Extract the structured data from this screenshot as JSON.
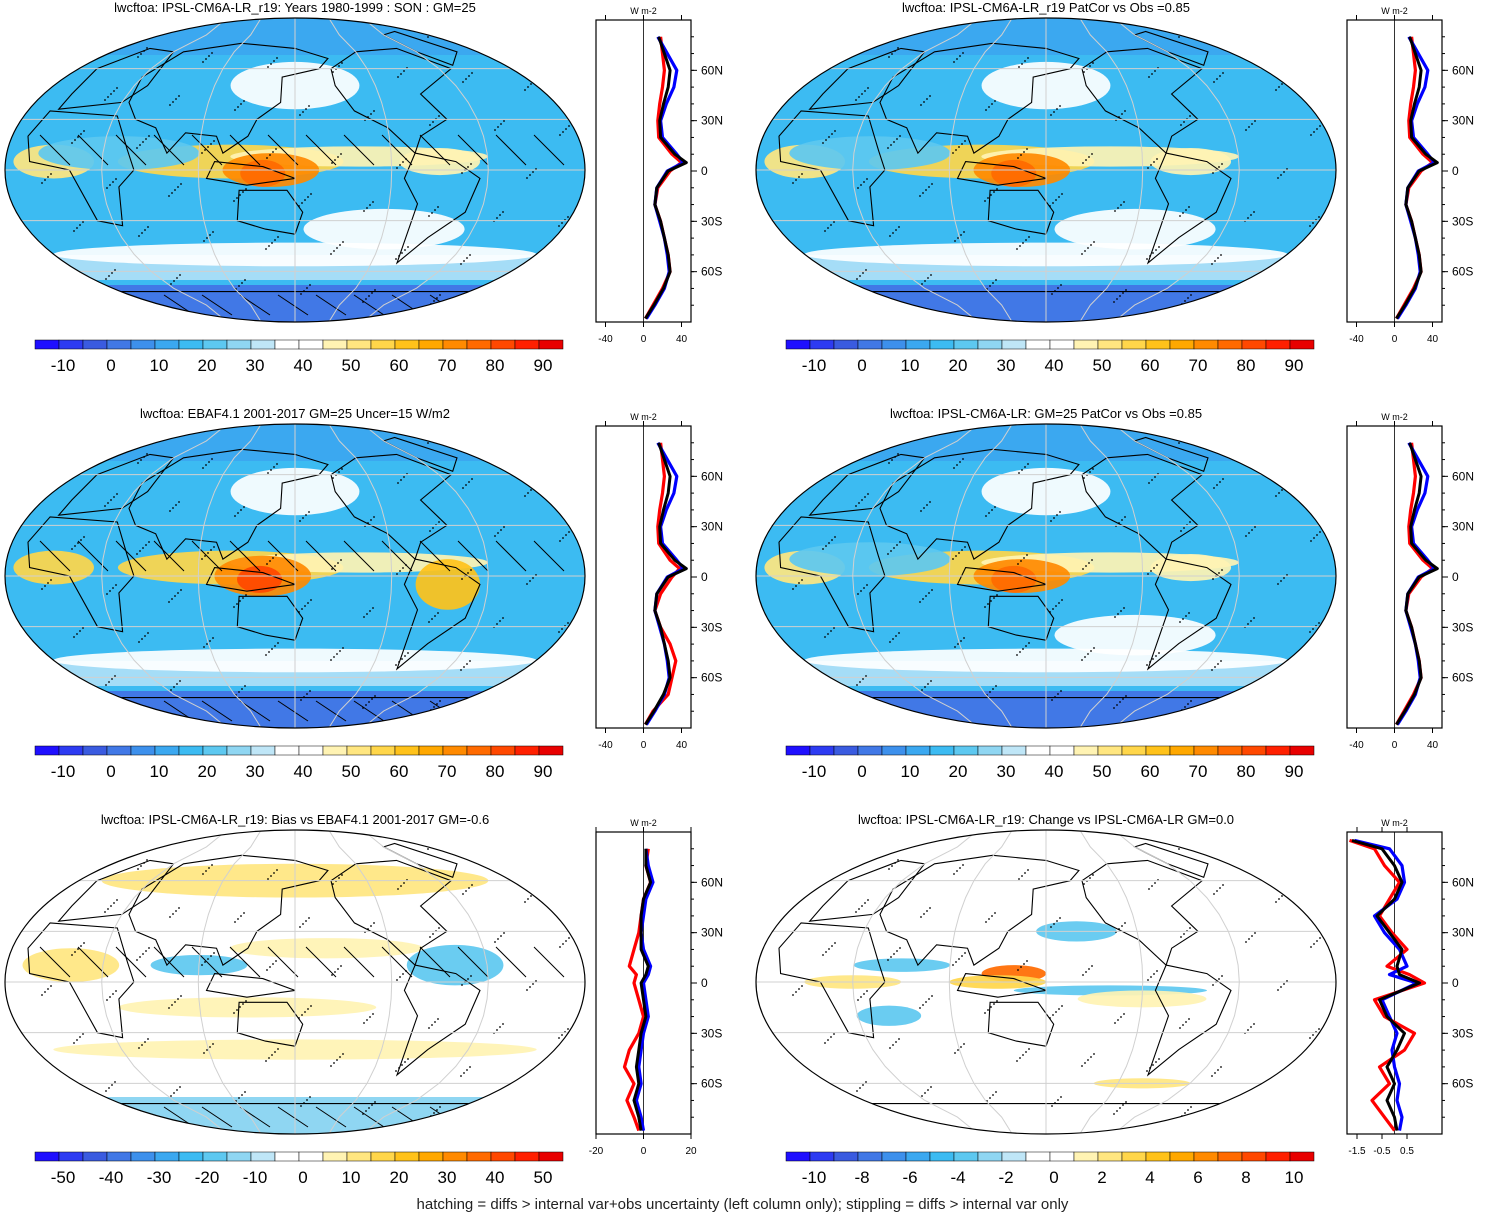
{
  "footer": "hatching = diffs > internal var+obs uncertainty (left column only); stippling = diffs > internal var only",
  "units_label": "W m-2",
  "lat_ticks": [
    "60N",
    "30N",
    "0",
    "30S",
    "60S"
  ],
  "colors": {
    "model": "#ff0000",
    "obs": "#0000ff",
    "mean": "#000000",
    "palette": [
      "#1f0fff",
      "#2d3bf2",
      "#3a5be0",
      "#4178e6",
      "#3d90ec",
      "#3ba8f0",
      "#3cbbf2",
      "#5dc8f0",
      "#8fd6f2",
      "#bfe6f7",
      "#ffffff",
      "#ffffff",
      "#fff3b3",
      "#ffe680",
      "#ffd64a",
      "#ffc21a",
      "#ffa800",
      "#ff8a00",
      "#ff6a00",
      "#ff4800",
      "#ff2000",
      "#e80000",
      "#b00000"
    ]
  },
  "panels": [
    {
      "id": "top-left",
      "title": "lwcftoa: IPSL-CM6A-LR_r19: Years 1980-1999 : SON : GM=25",
      "cbar_labels": [
        "-10",
        "0",
        "10",
        "20",
        "30",
        "40",
        "50",
        "60",
        "70",
        "80",
        "90"
      ],
      "zm_ticks": [
        "-40",
        "0",
        "40"
      ],
      "chart_data": {
        "type": "line",
        "title": "lwcftoa: IPSL-CM6A-LR_r19: Years 1980-1999 : SON : GM=25",
        "xlabel": "W m-2",
        "ylabel": "",
        "xlim": [
          -50,
          50
        ],
        "ylim": [
          -90,
          90
        ],
        "y": [
          80,
          70,
          60,
          50,
          40,
          30,
          20,
          10,
          5,
          0,
          -10,
          -20,
          -30,
          -40,
          -50,
          -60,
          -70,
          -80,
          -88
        ],
        "series": [
          {
            "values": [
              18,
              20,
              22,
              20,
              17,
              15,
              16,
              30,
              40,
              28,
              15,
              12,
              18,
              22,
              26,
              28,
              20,
              10,
              2
            ]
          },
          {
            "values": [
              15,
              25,
              35,
              32,
              24,
              18,
              20,
              35,
              42,
              25,
              14,
              12,
              17,
              22,
              25,
              27,
              22,
              12,
              3
            ]
          },
          {
            "values": [
              16,
              22,
              28,
              26,
              21,
              17,
              18,
              33,
              45,
              26,
              14,
              12,
              18,
              22,
              26,
              28,
              21,
              11,
              2
            ]
          }
        ]
      }
    },
    {
      "id": "top-right",
      "title": "lwcftoa: IPSL-CM6A-LR_r19 PatCor vs Obs =0.85",
      "cbar_labels": [
        "-10",
        "0",
        "10",
        "20",
        "30",
        "40",
        "50",
        "60",
        "70",
        "80",
        "90"
      ],
      "zm_ticks": [
        "-40",
        "0",
        "40"
      ],
      "chart_data": {
        "type": "line",
        "title": "lwcftoa: IPSL-CM6A-LR_r19 PatCor vs Obs =0.85",
        "xlabel": "W m-2",
        "ylabel": "",
        "xlim": [
          -50,
          50
        ],
        "ylim": [
          -90,
          90
        ],
        "y": [
          80,
          70,
          60,
          50,
          40,
          30,
          20,
          10,
          5,
          0,
          -10,
          -20,
          -30,
          -40,
          -50,
          -60,
          -70,
          -80,
          -88
        ],
        "series": [
          {
            "values": [
              18,
              20,
              22,
              20,
              17,
              15,
              16,
              30,
              40,
              28,
              15,
              12,
              18,
              22,
              26,
              28,
              20,
              10,
              2
            ]
          },
          {
            "values": [
              15,
              25,
              35,
              32,
              24,
              18,
              20,
              35,
              42,
              25,
              14,
              12,
              17,
              22,
              25,
              27,
              22,
              12,
              3
            ]
          },
          {
            "values": [
              16,
              22,
              28,
              26,
              21,
              17,
              18,
              33,
              45,
              26,
              14,
              12,
              18,
              22,
              26,
              28,
              21,
              11,
              2
            ]
          }
        ]
      }
    },
    {
      "id": "middle-left",
      "title": "lwcftoa: EBAF4.1 2001-2017 GM=25 Uncer=15 W/m2",
      "cbar_labels": [
        "-10",
        "0",
        "10",
        "20",
        "30",
        "40",
        "50",
        "60",
        "70",
        "80",
        "90"
      ],
      "zm_ticks": [
        "-40",
        "0",
        "40"
      ],
      "chart_data": {
        "type": "line",
        "title": "lwcftoa: EBAF4.1 2001-2017 GM=25 Uncer=15 W/m2",
        "xlabel": "W m-2",
        "ylabel": "",
        "xlim": [
          -50,
          50
        ],
        "ylim": [
          -90,
          90
        ],
        "y": [
          80,
          70,
          60,
          50,
          40,
          30,
          20,
          10,
          5,
          0,
          -10,
          -20,
          -30,
          -40,
          -50,
          -60,
          -70,
          -80,
          -88
        ],
        "series": [
          {
            "values": [
              18,
              20,
              22,
              20,
              17,
              15,
              16,
              28,
              38,
              30,
              18,
              12,
              18,
              28,
              34,
              30,
              26,
              10,
              2
            ]
          },
          {
            "values": [
              15,
              25,
              35,
              32,
              24,
              18,
              20,
              35,
              42,
              25,
              14,
              12,
              17,
              22,
              25,
              27,
              22,
              12,
              3
            ]
          },
          {
            "values": [
              16,
              22,
              28,
              26,
              21,
              17,
              18,
              33,
              45,
              26,
              14,
              12,
              18,
              22,
              26,
              28,
              21,
              11,
              2
            ]
          }
        ]
      }
    },
    {
      "id": "middle-right",
      "title": "lwcftoa: IPSL-CM6A-LR: GM=25 PatCor vs Obs =0.85",
      "cbar_labels": [
        "-10",
        "0",
        "10",
        "20",
        "30",
        "40",
        "50",
        "60",
        "70",
        "80",
        "90"
      ],
      "zm_ticks": [
        "-40",
        "0",
        "40"
      ],
      "chart_data": {
        "type": "line",
        "title": "lwcftoa: IPSL-CM6A-LR: GM=25 PatCor vs Obs =0.85",
        "xlabel": "W m-2",
        "ylabel": "",
        "xlim": [
          -50,
          50
        ],
        "ylim": [
          -90,
          90
        ],
        "y": [
          80,
          70,
          60,
          50,
          40,
          30,
          20,
          10,
          5,
          0,
          -10,
          -20,
          -30,
          -40,
          -50,
          -60,
          -70,
          -80,
          -88
        ],
        "series": [
          {
            "values": [
              18,
              20,
              22,
              20,
              17,
              15,
              16,
              30,
              40,
              28,
              15,
              12,
              18,
              22,
              26,
              28,
              20,
              10,
              2
            ]
          },
          {
            "values": [
              15,
              25,
              35,
              32,
              24,
              18,
              20,
              35,
              42,
              25,
              14,
              12,
              17,
              22,
              25,
              27,
              22,
              12,
              3
            ]
          },
          {
            "values": [
              16,
              22,
              28,
              26,
              21,
              17,
              18,
              33,
              45,
              26,
              14,
              12,
              18,
              22,
              26,
              28,
              21,
              11,
              2
            ]
          }
        ]
      }
    },
    {
      "id": "bottom-left",
      "title": "lwcftoa: IPSL-CM6A-LR_r19: Bias vs EBAF4.1 2001-2017  GM=-0.6",
      "cbar_labels": [
        "-50",
        "-40",
        "-30",
        "-20",
        "-10",
        "0",
        "10",
        "20",
        "30",
        "40",
        "50"
      ],
      "zm_ticks": [
        "-20",
        "0",
        "20"
      ],
      "chart_data": {
        "type": "line",
        "title": "lwcftoa: IPSL-CM6A-LR_r19: Bias vs EBAF4.1 2001-2017  GM=-0.6",
        "xlabel": "W m-2",
        "ylabel": "",
        "xlim": [
          -20,
          20
        ],
        "ylim": [
          -90,
          90
        ],
        "y": [
          80,
          70,
          60,
          50,
          40,
          30,
          20,
          10,
          5,
          0,
          -10,
          -20,
          -30,
          -40,
          -50,
          -60,
          -70,
          -80,
          -88
        ],
        "series": [
          {
            "values": [
              2,
              1,
              3,
              0,
              -1,
              -2,
              -4,
              -6,
              -3,
              -4,
              -2,
              0,
              -2,
              -6,
              -8,
              -4,
              -7,
              -4,
              -2
            ]
          },
          {
            "values": [
              1,
              2,
              4,
              1,
              0,
              -1,
              0,
              3,
              2,
              0,
              1,
              2,
              0,
              -1,
              -2,
              -1,
              -3,
              -1,
              0
            ]
          },
          {
            "values": [
              1,
              1,
              3,
              0,
              -1,
              -1,
              -1,
              2,
              1,
              -1,
              0,
              1,
              -1,
              -2,
              -3,
              -2,
              -4,
              -2,
              -1
            ]
          }
        ]
      }
    },
    {
      "id": "bottom-right",
      "title": "lwcftoa: IPSL-CM6A-LR_r19: Change vs IPSL-CM6A-LR GM=0.0",
      "cbar_labels": [
        "-10",
        "-8",
        "-6",
        "-4",
        "-2",
        "0",
        "2",
        "4",
        "6",
        "8",
        "10"
      ],
      "zm_ticks": [
        "-1.5",
        "-0.5",
        "0.5"
      ],
      "chart_data": {
        "type": "line",
        "title": "lwcftoa: IPSL-CM6A-LR_r19: Change vs IPSL-CM6A-LR GM=0.0",
        "xlabel": "W m-2",
        "ylabel": "",
        "xlim": [
          -1.9,
          1.9
        ],
        "ylim": [
          -90,
          90
        ],
        "y": [
          85,
          80,
          70,
          60,
          50,
          40,
          30,
          20,
          10,
          5,
          0,
          -10,
          -20,
          -30,
          -40,
          -50,
          -60,
          -70,
          -80,
          -88
        ],
        "series": [
          {
            "values": [
              -1.8,
              -0.8,
              -0.4,
              0.2,
              -0.2,
              -0.6,
              -0.1,
              0.5,
              -0.3,
              0.6,
              1.2,
              -0.8,
              -0.4,
              0.8,
              0.4,
              -0.6,
              -0.2,
              -0.9,
              -0.4,
              0.0
            ]
          },
          {
            "values": [
              -1.6,
              -0.2,
              0.3,
              0.4,
              0.1,
              -0.8,
              -0.4,
              0.2,
              0.5,
              -0.2,
              0.9,
              -0.5,
              -0.2,
              0.1,
              -0.1,
              0.0,
              0.2,
              0.1,
              0.3,
              0.2
            ]
          },
          {
            "values": [
              -1.7,
              -0.5,
              0.0,
              0.3,
              0.0,
              -0.7,
              -0.2,
              0.3,
              0.1,
              0.2,
              1.0,
              -0.6,
              -0.3,
              0.4,
              0.1,
              -0.3,
              0.0,
              -0.3,
              0.0,
              0.1
            ]
          }
        ]
      }
    }
  ]
}
